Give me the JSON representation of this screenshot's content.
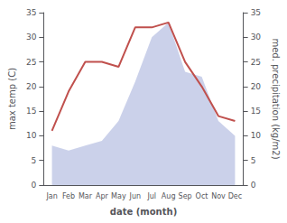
{
  "chart_data": {
    "type": "line",
    "xlabel": "date (month)",
    "ylabel": "max temp (C)",
    "y2label": "med. precipitation (kg/m2)",
    "categories": [
      "Jan",
      "Feb",
      "Mar",
      "Apr",
      "May",
      "Jun",
      "Jul",
      "Aug",
      "Sep",
      "Oct",
      "Nov",
      "Dec"
    ],
    "series": [
      {
        "type": "area",
        "color": "#c5cce8",
        "values": [
          8,
          7,
          8,
          9,
          13,
          21,
          30,
          33,
          23,
          22,
          13,
          10
        ]
      },
      {
        "type": "line",
        "color": "#c0504d",
        "values": [
          11,
          19,
          25,
          25,
          24,
          32,
          32,
          33,
          25,
          20,
          14,
          13
        ]
      }
    ],
    "ylim": [
      0,
      35
    ],
    "yticks": [
      0,
      5,
      10,
      15,
      20,
      25,
      30,
      35
    ],
    "y2lim": [
      0,
      35
    ],
    "y2ticks": [
      0,
      5,
      10,
      15,
      20,
      25,
      30,
      35
    ],
    "grid": false
  }
}
